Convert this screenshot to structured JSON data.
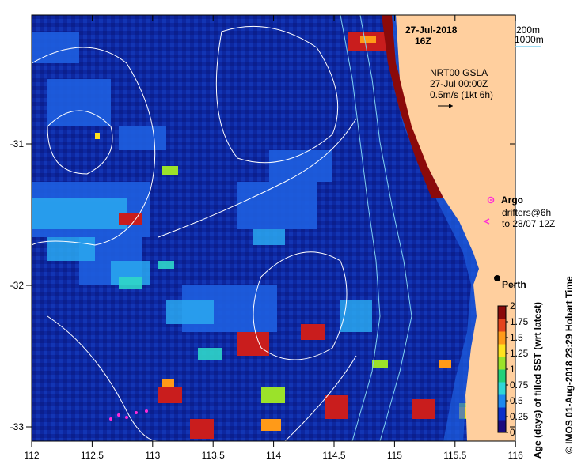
{
  "date_label": "27-Jul-2018",
  "time_label": "16Z",
  "depth_legend": {
    "line1": "200m",
    "line2": "1000m"
  },
  "current_info": {
    "product": "NRT00 GSLA",
    "time": "27-Jul 00:00Z",
    "scale": "0.5m/s (1kt 6h)"
  },
  "argo_label": "Argo",
  "drifters_label1": "drifters@6h",
  "drifters_label2": "to 28/07 12Z",
  "city_label": "Perth",
  "colorbar": {
    "title": "Age (days) of filled SST (wrt latest)",
    "ticks": [
      "0",
      "0.25",
      "0.5",
      "0.75",
      "1",
      "1.25",
      "1.5",
      "1.75",
      "2"
    ],
    "colors": [
      "#1a0b7e",
      "#0a2fc8",
      "#1e88ee",
      "#2fd6d6",
      "#22d07a",
      "#9be22a",
      "#ffe21e",
      "#ff9a18",
      "#e4441c",
      "#8b0a0a"
    ]
  },
  "credit": "© IMOS 01-Aug-2018 23:29 Hobart Time",
  "x_ticks": [
    "112",
    "112.5",
    "113",
    "113.5",
    "114",
    "114.5",
    "115",
    "115.5",
    "116"
  ],
  "y_ticks": [
    "-31",
    "-32",
    "-33"
  ],
  "colors": {
    "ocean": "#0e2aa6",
    "land": "#ffcf9e",
    "contour": "#ffffff",
    "bathymetry": "#7fd0f0"
  }
}
